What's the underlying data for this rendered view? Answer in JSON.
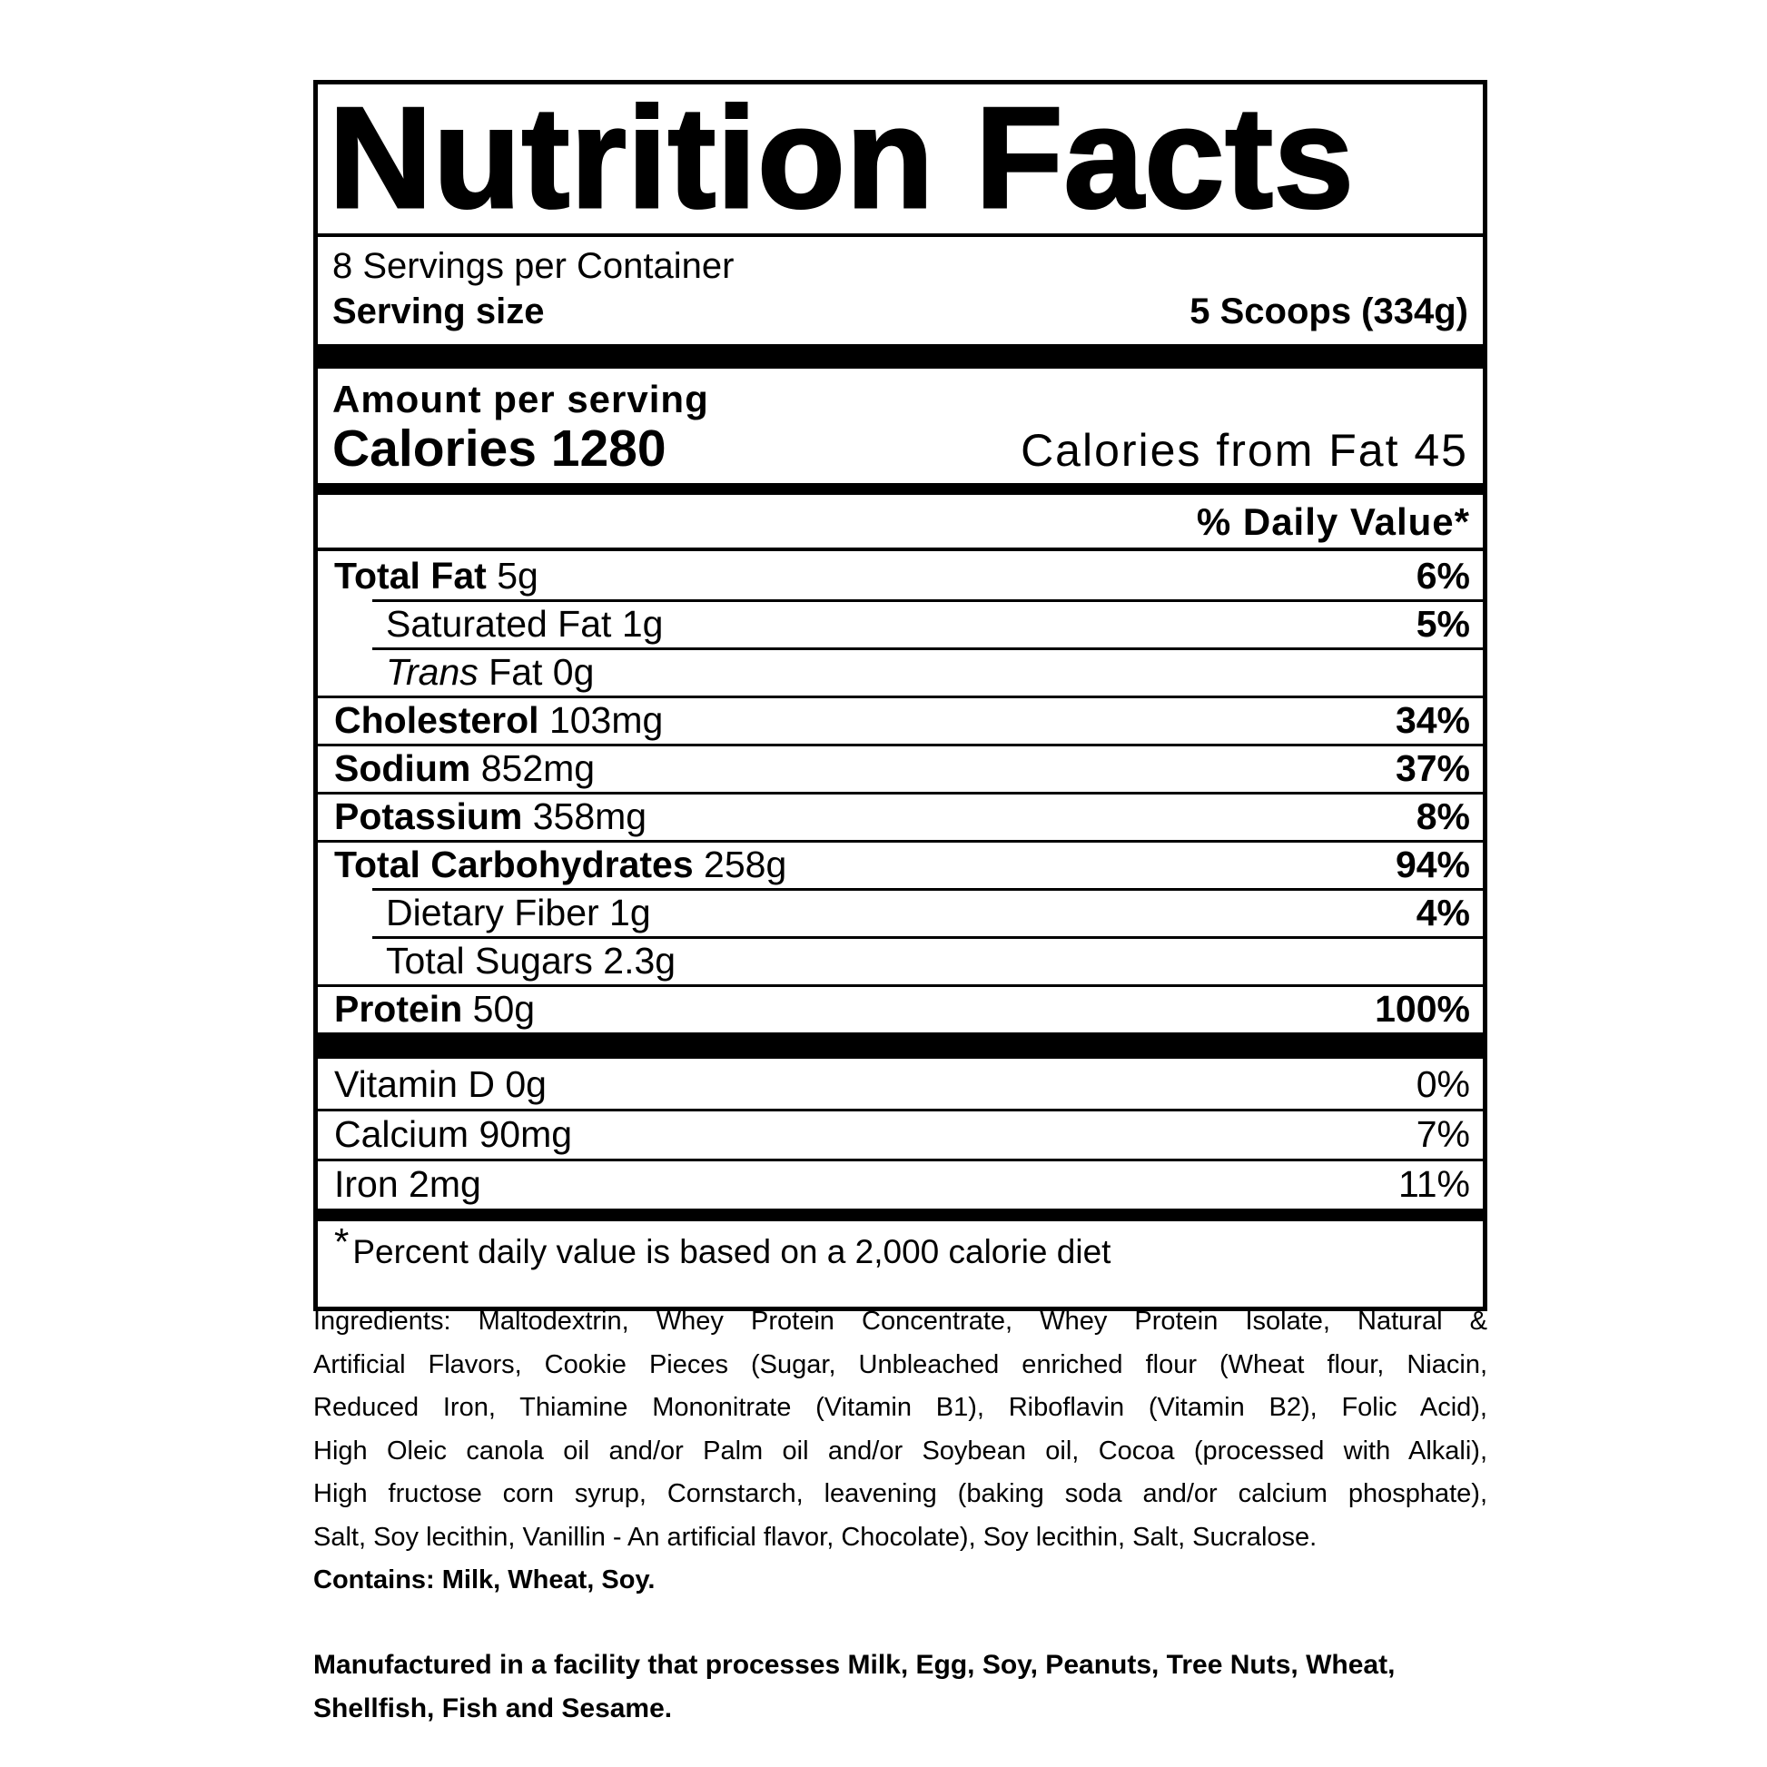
{
  "page": {
    "background": "#ffffff",
    "text_color": "#000000"
  },
  "label": {
    "title": "Nutrition Facts",
    "servings_per_container": "8 Servings per Container",
    "serving_size": {
      "label": "Serving size",
      "value": "5 Scoops (334g)"
    },
    "amount_per_serving": "Amount per serving",
    "calories": "Calories 1280",
    "calories_from_fat": "Calories from Fat 45",
    "daily_value_header": "% Daily Value*",
    "rows": [
      {
        "b": "Total Fat",
        "i": "",
        "r": " 5g",
        "dv": "6%"
      },
      {
        "b": "",
        "i": "",
        "r": "Saturated Fat 1g",
        "dv": "5%"
      },
      {
        "b": "",
        "i": "Trans",
        "r": " Fat 0g",
        "dv": ""
      },
      {
        "b": "Cholesterol",
        "i": "",
        "r": " 103mg",
        "dv": "34%"
      },
      {
        "b": "Sodium",
        "i": "",
        "r": " 852mg",
        "dv": "37%"
      },
      {
        "b": "Potassium",
        "i": "",
        "r": " 358mg",
        "dv": "8%"
      },
      {
        "b": "Total Carbohydrates",
        "i": "",
        "r": " 258g",
        "dv": "94%"
      },
      {
        "b": "",
        "i": "",
        "r": "Dietary Fiber 1g",
        "dv": "4%"
      },
      {
        "b": "",
        "i": "",
        "r": "Total Sugars 2.3g",
        "dv": ""
      },
      {
        "b": "Protein",
        "i": "",
        "r": " 50g",
        "dv": "100%"
      }
    ],
    "vitamins": [
      {
        "r": "Vitamin D 0g",
        "dv": "0%"
      },
      {
        "r": "Calcium 90mg",
        "dv": "7%"
      },
      {
        "r": "Iron 2mg",
        "dv": "11%"
      }
    ],
    "footnote": {
      "asterisk": "*",
      "text": "Percent daily value is based on a 2,000 calorie diet"
    }
  },
  "ingredients": {
    "lines": [
      "Ingredients: Maltodextrin, Whey Protein Concentrate, Whey Protein Isolate, Natural &",
      "Artificial Flavors, Cookie Pieces (Sugar, Unbleached enriched flour (Wheat flour, Niacin,",
      "Reduced Iron, Thiamine Mononitrate (Vitamin B1), Riboflavin (Vitamin B2), Folic Acid),",
      "High Oleic canola oil and/or Palm oil and/or Soybean oil, Cocoa (processed with Alkali),",
      "High fructose corn syrup, Cornstarch, leavening (baking soda and/or calcium phosphate),",
      "Salt, Soy lecithin, Vanillin - An artificial flavor, Chocolate), Soy lecithin, Salt, Sucralose."
    ],
    "contains": "Contains: Milk, Wheat, Soy."
  },
  "allergen_statement": {
    "lines": [
      "Manufactured in a facility that processes Milk, Egg, Soy, Peanuts, Tree Nuts, Wheat,",
      "Shellfish, Fish and Sesame."
    ]
  }
}
